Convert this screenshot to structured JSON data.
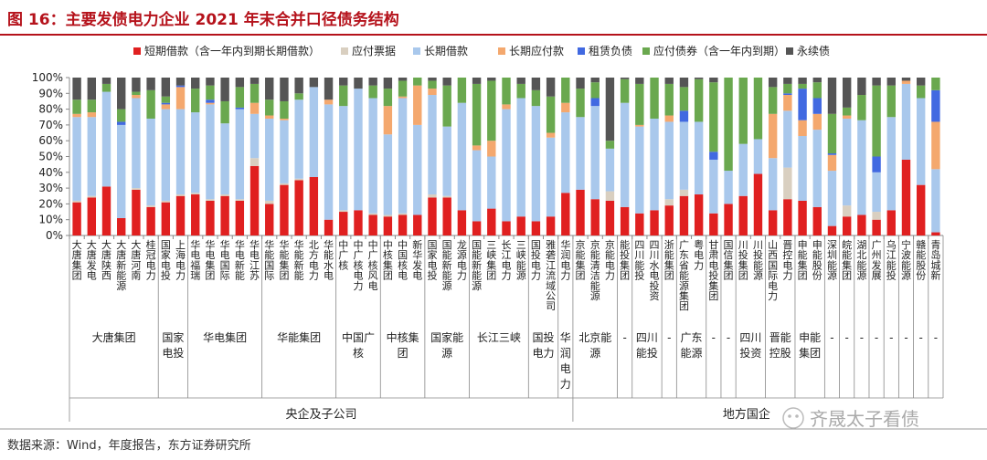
{
  "page": {
    "title": "图 16：主要发债电力企业 2021 年末合并口径债务结构",
    "source": "数据来源：Wind，年度报告，东方证券研究所",
    "watermark": "齐晟太子看债"
  },
  "colors": {
    "title": "#b5121b",
    "rule": "#b5121b",
    "text": "#222222",
    "axis": "#666666"
  },
  "chart_data": {
    "type": "bar",
    "stacked": true,
    "percent": true,
    "ylim": [
      0,
      100
    ],
    "yticks": [
      "0%",
      "10%",
      "20%",
      "30%",
      "40%",
      "50%",
      "60%",
      "70%",
      "80%",
      "90%",
      "100%"
    ],
    "legend_position": "top",
    "grid": false,
    "series": [
      {
        "name": "短期借款（含一年内到期长期借款）",
        "color": "#e02020"
      },
      {
        "name": "应付票据",
        "color": "#d9cfc0"
      },
      {
        "name": "长期借款",
        "color": "#a9c8ec"
      },
      {
        "name": "长期应付款",
        "color": "#f4a86e"
      },
      {
        "name": "租赁负债",
        "color": "#4169e1"
      },
      {
        "name": "应付债券（含一年内到期）",
        "color": "#6aa84f"
      },
      {
        "name": "永续债",
        "color": "#555555"
      }
    ],
    "categories": [
      "大唐集团",
      "大唐发电",
      "大唐陕西",
      "大唐新能源",
      "大唐河南",
      "桂冠电力",
      "国家电投",
      "上海电力",
      "华电福瑞",
      "华电集团",
      "华电国际",
      "华电新能",
      "华电江苏",
      "华能国际",
      "华能集团",
      "华能新能",
      "北方电力",
      "华能水电",
      "中广核",
      "中广核电力",
      "中广核风电",
      "中核集团",
      "中国核电",
      "新华发电",
      "国家电投",
      "国能新能源",
      "龙源电力",
      "国能新能源",
      "三峡集团",
      "长江电力",
      "三峡能源",
      "国投电力",
      "雅砻江流域公司",
      "华润电力",
      "京能集团",
      "京能清洁能源",
      "京能电力",
      "能投集团",
      "四川能投",
      "四川水电投资",
      "浙能集团",
      "广东省能源集团",
      "粤电力",
      "甘肃电投集团",
      "国信集团",
      "川投集团",
      "川投能源",
      "山西国际电力",
      "晋控电力",
      "申能集团",
      "申能股份",
      "深圳能源",
      "皖能集团",
      "湖北能源",
      "广州发展",
      "乌江能投",
      "宁波能源",
      "赣能股份",
      "青岛城新"
    ],
    "values": [
      [
        21,
        1,
        53,
        2,
        0,
        9,
        14
      ],
      [
        24,
        1,
        50,
        3,
        0,
        8,
        14
      ],
      [
        31,
        0,
        60,
        0,
        0,
        5,
        4
      ],
      [
        11,
        0,
        59,
        0,
        2,
        8,
        20
      ],
      [
        29,
        1,
        57,
        2,
        0,
        2,
        9
      ],
      [
        18,
        1,
        55,
        0,
        0,
        18,
        8
      ],
      [
        21,
        1,
        58,
        3,
        1,
        4,
        12
      ],
      [
        25,
        1,
        54,
        14,
        1,
        0,
        5
      ],
      [
        26,
        1,
        51,
        0,
        0,
        15,
        7
      ],
      [
        22,
        1,
        60,
        1,
        2,
        9,
        5
      ],
      [
        25,
        1,
        45,
        0,
        0,
        14,
        15
      ],
      [
        22,
        1,
        57,
        0,
        1,
        13,
        6
      ],
      [
        44,
        5,
        28,
        7,
        0,
        12,
        4
      ],
      [
        20,
        2,
        52,
        2,
        0,
        10,
        14
      ],
      [
        32,
        1,
        40,
        1,
        0,
        11,
        15
      ],
      [
        35,
        1,
        50,
        0,
        0,
        4,
        10
      ],
      [
        37,
        0,
        57,
        0,
        0,
        0,
        6
      ],
      [
        10,
        0,
        73,
        3,
        0,
        0,
        14
      ],
      [
        15,
        1,
        66,
        0,
        0,
        13,
        5
      ],
      [
        16,
        0,
        77,
        0,
        0,
        0,
        7
      ],
      [
        13,
        1,
        73,
        0,
        0,
        8,
        5
      ],
      [
        12,
        1,
        51,
        18,
        0,
        11,
        7
      ],
      [
        13,
        1,
        73,
        1,
        0,
        10,
        2
      ],
      [
        13,
        0,
        57,
        25,
        0,
        5,
        0
      ],
      [
        24,
        2,
        63,
        4,
        0,
        5,
        2
      ],
      [
        24,
        1,
        44,
        0,
        0,
        26,
        5
      ],
      [
        16,
        0,
        68,
        0,
        0,
        16,
        0
      ],
      [
        9,
        0,
        45,
        3,
        0,
        39,
        4
      ],
      [
        17,
        0,
        33,
        10,
        0,
        38,
        2
      ],
      [
        9,
        0,
        71,
        3,
        0,
        17,
        0
      ],
      [
        12,
        0,
        75,
        0,
        0,
        9,
        4
      ],
      [
        9,
        0,
        73,
        0,
        0,
        10,
        8
      ],
      [
        12,
        0,
        50,
        3,
        0,
        23,
        12
      ],
      [
        27,
        0,
        51,
        6,
        0,
        16,
        0
      ],
      [
        29,
        0,
        46,
        0,
        0,
        18,
        7
      ],
      [
        23,
        0,
        59,
        0,
        5,
        10,
        3
      ],
      [
        22,
        6,
        27,
        0,
        0,
        5,
        40
      ],
      [
        18,
        0,
        66,
        0,
        0,
        15,
        1
      ],
      [
        14,
        0,
        55,
        1,
        0,
        26,
        4
      ],
      [
        16,
        0,
        58,
        0,
        0,
        26,
        0
      ],
      [
        19,
        4,
        49,
        4,
        0,
        20,
        4
      ],
      [
        25,
        4,
        43,
        0,
        7,
        15,
        6
      ],
      [
        26,
        0,
        46,
        0,
        0,
        27,
        1
      ],
      [
        14,
        0,
        34,
        0,
        5,
        44,
        3
      ],
      [
        20,
        0,
        21,
        0,
        0,
        59,
        0
      ],
      [
        25,
        0,
        33,
        0,
        0,
        42,
        0
      ],
      [
        39,
        0,
        22,
        0,
        0,
        39,
        0
      ],
      [
        16,
        0,
        33,
        28,
        0,
        17,
        6
      ],
      [
        23,
        20,
        36,
        10,
        1,
        6,
        4
      ],
      [
        22,
        0,
        41,
        10,
        20,
        3,
        4
      ],
      [
        18,
        0,
        49,
        10,
        10,
        10,
        3
      ],
      [
        6,
        0,
        35,
        10,
        1,
        25,
        23
      ],
      [
        12,
        7,
        55,
        2,
        0,
        5,
        19
      ],
      [
        13,
        0,
        60,
        0,
        0,
        16,
        11
      ],
      [
        10,
        5,
        25,
        0,
        10,
        45,
        5
      ],
      [
        16,
        0,
        59,
        0,
        0,
        20,
        5
      ],
      [
        48,
        0,
        48,
        2,
        0,
        0,
        2
      ],
      [
        32,
        0,
        55,
        0,
        0,
        8,
        5
      ],
      [
        2,
        0,
        40,
        30,
        20,
        8,
        0
      ]
    ],
    "groups": [
      {
        "label": "大唐集团",
        "start": 0,
        "end": 5
      },
      {
        "label": "国家电投",
        "start": 6,
        "end": 7
      },
      {
        "label": "华电集团",
        "start": 8,
        "end": 12
      },
      {
        "label": "华能集团",
        "start": 13,
        "end": 17
      },
      {
        "label": "中国广核",
        "start": 18,
        "end": 20
      },
      {
        "label": "中核集团",
        "start": 21,
        "end": 23
      },
      {
        "label": "国家能源",
        "start": 24,
        "end": 26
      },
      {
        "label": "长江三峡",
        "start": 27,
        "end": 30
      },
      {
        "label": "国投电力",
        "start": 31,
        "end": 32
      },
      {
        "label": "华润电力",
        "start": 33,
        "end": 33
      },
      {
        "label": "北京能源",
        "start": 34,
        "end": 36
      },
      {
        "label": "-",
        "start": 37,
        "end": 37
      },
      {
        "label": "四川能投",
        "start": 38,
        "end": 39
      },
      {
        "label": "-",
        "start": 40,
        "end": 40
      },
      {
        "label": "广东能源",
        "start": 41,
        "end": 42
      },
      {
        "label": "-",
        "start": 43,
        "end": 43
      },
      {
        "label": "-",
        "start": 44,
        "end": 44
      },
      {
        "label": "四川投资",
        "start": 45,
        "end": 46
      },
      {
        "label": "晋能控股",
        "start": 47,
        "end": 48
      },
      {
        "label": "申能集团",
        "start": 49,
        "end": 50
      },
      {
        "label": "-",
        "start": 51,
        "end": 51
      },
      {
        "label": "-",
        "start": 52,
        "end": 52
      },
      {
        "label": "-",
        "start": 53,
        "end": 53
      },
      {
        "label": "-",
        "start": 54,
        "end": 54
      },
      {
        "label": "-",
        "start": 55,
        "end": 55
      },
      {
        "label": "-",
        "start": 56,
        "end": 56
      },
      {
        "label": "-",
        "start": 57,
        "end": 57
      },
      {
        "label": "-",
        "start": 58,
        "end": 58
      }
    ],
    "supergroups": [
      {
        "label": "央企及子公司",
        "start": 0,
        "end": 33
      },
      {
        "label": "地方国企",
        "start": 34,
        "end": 58
      }
    ]
  }
}
